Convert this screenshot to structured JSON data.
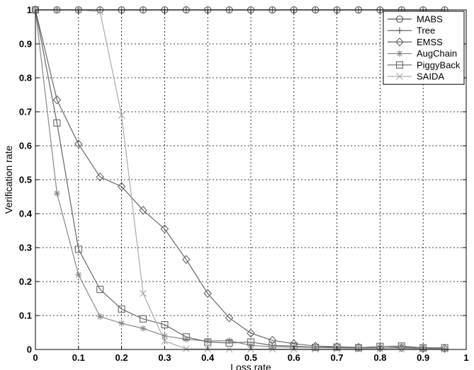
{
  "chart_data": {
    "type": "line",
    "title": "",
    "xlabel": "Loss rate",
    "ylabel": "Verification rate",
    "xlim": [
      0,
      1
    ],
    "ylim": [
      0,
      1
    ],
    "xticks": [
      "0",
      "0.1",
      "0.2",
      "0.3",
      "0.4",
      "0.5",
      "0.6",
      "0.7",
      "0.8",
      "0.9",
      "1"
    ],
    "yticks": [
      "0",
      "0.1",
      "0.2",
      "0.3",
      "0.4",
      "0.5",
      "0.6",
      "0.7",
      "0.8",
      "0.9",
      "1"
    ],
    "xtick_values": [
      0,
      0.1,
      0.2,
      0.3,
      0.4,
      0.5,
      0.6,
      0.7,
      0.8,
      0.9,
      1
    ],
    "ytick_values": [
      0,
      0.1,
      0.2,
      0.3,
      0.4,
      0.5,
      0.6,
      0.7,
      0.8,
      0.9,
      1
    ],
    "grid": true,
    "legend_position": "top-right",
    "x": [
      0,
      0.05,
      0.1,
      0.15,
      0.2,
      0.25,
      0.3,
      0.35,
      0.4,
      0.45,
      0.5,
      0.55,
      0.6,
      0.65,
      0.7,
      0.75,
      0.8,
      0.85,
      0.9,
      0.95
    ],
    "series": [
      {
        "name": "MABS",
        "marker": "circle",
        "color": "#555555",
        "values": [
          1,
          1,
          1,
          1,
          1,
          1,
          1,
          1,
          1,
          1,
          1,
          1,
          1,
          1,
          1,
          1,
          1,
          1,
          1,
          1
        ]
      },
      {
        "name": "Tree",
        "marker": "plus",
        "color": "#555555",
        "values": [
          1,
          1,
          1,
          1,
          1,
          1,
          1,
          1,
          1,
          1,
          1,
          1,
          1,
          1,
          1,
          1,
          1,
          1,
          1,
          1
        ]
      },
      {
        "name": "EMSS",
        "marker": "diamond",
        "color": "#666666",
        "values": [
          1,
          0.735,
          0.605,
          0.508,
          0.48,
          0.41,
          0.355,
          0.265,
          0.165,
          0.093,
          0.048,
          0.027,
          0.017,
          0.01,
          0.008,
          0.006,
          0.005,
          0.005,
          0.003,
          0.003
        ]
      },
      {
        "name": "AugChain",
        "marker": "asterisk",
        "color": "#888888",
        "values": [
          1,
          0.46,
          0.22,
          0.097,
          0.077,
          0.062,
          0.04,
          0.03,
          0.025,
          0.026,
          0.012,
          0.008,
          0.007,
          0.006,
          0.005,
          0.004,
          0.004,
          0.008,
          0.003,
          0.002
        ]
      },
      {
        "name": "PiggyBack",
        "marker": "square",
        "color": "#666666",
        "values": [
          1,
          0.667,
          0.295,
          0.177,
          0.119,
          0.09,
          0.073,
          0.037,
          0.022,
          0.019,
          0.022,
          0.012,
          0.01,
          0.006,
          0.007,
          0.005,
          0.009,
          0.01,
          0.005,
          0.005
        ]
      },
      {
        "name": "SAIDA",
        "marker": "cross",
        "color": "#aaaaaa",
        "values": [
          1,
          1,
          1,
          0.995,
          0.69,
          0.165,
          0.025,
          0.002,
          0.001,
          0.001,
          0.001,
          0.001,
          0.001,
          0.001,
          0.001,
          0.001,
          0.001,
          0.001,
          0.001,
          0.001
        ]
      }
    ]
  }
}
